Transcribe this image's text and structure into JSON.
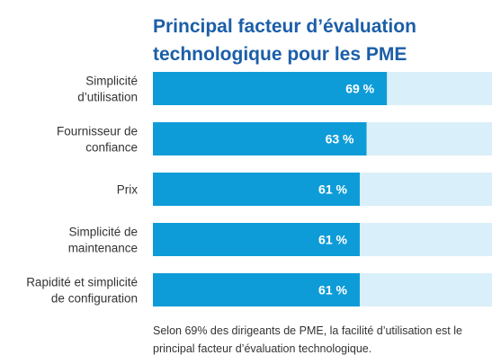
{
  "title": {
    "line1": "Principal facteur d’évaluation",
    "line2": "technologique pour les PME"
  },
  "chart_data": {
    "type": "bar",
    "orientation": "horizontal",
    "title": "Principal facteur d’évaluation technologique pour les PME",
    "categories": [
      [
        "Simplicité",
        "d’utilisation"
      ],
      [
        "Fournisseur de",
        "confiance"
      ],
      [
        "Prix"
      ],
      [
        "Simplicité de",
        "maintenance"
      ],
      [
        "Rapidité et  simplicité",
        "de configuration"
      ]
    ],
    "values": [
      69,
      63,
      61,
      61,
      61
    ],
    "value_labels": [
      "69 %",
      "63 %",
      "61 %",
      "61 %",
      "61 %"
    ],
    "xlim": [
      0,
      100
    ],
    "grid": false,
    "legend": "none"
  },
  "colors": {
    "title": "#1b5ea8",
    "bar": "#0e9cd8",
    "track": "#d9eff9",
    "label": "#333333",
    "value_label": "#ffffff"
  },
  "footnote": {
    "line1": "Selon 69% des dirigeants de PME, la facilité d’utilisation est le",
    "line2": "principal facteur d’évaluation technologique."
  }
}
